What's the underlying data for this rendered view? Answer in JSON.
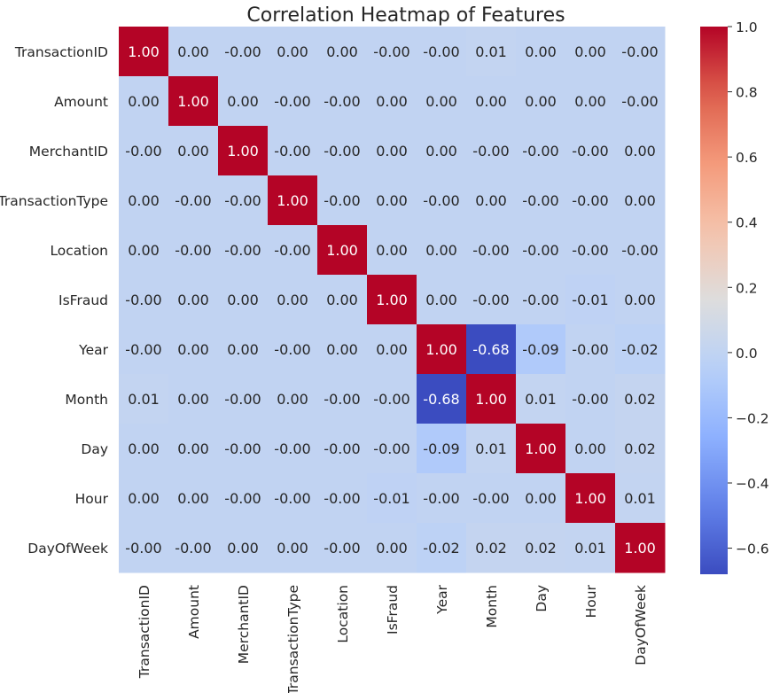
{
  "chart_data": {
    "type": "heatmap",
    "title": "Correlation Heatmap of Features",
    "xlabel": "",
    "ylabel": "",
    "labels": [
      "TransactionID",
      "Amount",
      "MerchantID",
      "TransactionType",
      "Location",
      "IsFraud",
      "Year",
      "Month",
      "Day",
      "Hour",
      "DayOfWeek"
    ],
    "matrix": [
      [
        1.0,
        0.0,
        -0.0,
        0.0,
        0.0,
        -0.0,
        -0.0,
        0.01,
        0.0,
        0.0,
        -0.0
      ],
      [
        0.0,
        1.0,
        0.0,
        -0.0,
        -0.0,
        0.0,
        0.0,
        0.0,
        0.0,
        0.0,
        -0.0
      ],
      [
        -0.0,
        0.0,
        1.0,
        -0.0,
        -0.0,
        0.0,
        0.0,
        -0.0,
        -0.0,
        -0.0,
        0.0
      ],
      [
        0.0,
        -0.0,
        -0.0,
        1.0,
        -0.0,
        0.0,
        -0.0,
        0.0,
        -0.0,
        -0.0,
        0.0
      ],
      [
        0.0,
        -0.0,
        -0.0,
        -0.0,
        1.0,
        0.0,
        0.0,
        -0.0,
        -0.0,
        -0.0,
        -0.0
      ],
      [
        -0.0,
        0.0,
        0.0,
        0.0,
        0.0,
        1.0,
        0.0,
        -0.0,
        -0.0,
        -0.01,
        0.0
      ],
      [
        -0.0,
        0.0,
        0.0,
        -0.0,
        0.0,
        0.0,
        1.0,
        -0.68,
        -0.09,
        -0.0,
        -0.02
      ],
      [
        0.01,
        0.0,
        -0.0,
        0.0,
        -0.0,
        -0.0,
        -0.68,
        1.0,
        0.01,
        -0.0,
        0.02
      ],
      [
        0.0,
        0.0,
        -0.0,
        -0.0,
        -0.0,
        -0.0,
        -0.09,
        0.01,
        1.0,
        0.0,
        0.02
      ],
      [
        0.0,
        0.0,
        -0.0,
        -0.0,
        -0.0,
        -0.01,
        -0.0,
        -0.0,
        0.0,
        1.0,
        0.01
      ],
      [
        -0.0,
        -0.0,
        0.0,
        0.0,
        -0.0,
        0.0,
        -0.02,
        0.02,
        0.02,
        0.01,
        1.0
      ]
    ],
    "display": [
      [
        "1.00",
        "0.00",
        "-0.00",
        "0.00",
        "0.00",
        "-0.00",
        "-0.00",
        "0.01",
        "0.00",
        "0.00",
        "-0.00"
      ],
      [
        "0.00",
        "1.00",
        "0.00",
        "-0.00",
        "-0.00",
        "0.00",
        "0.00",
        "0.00",
        "0.00",
        "0.00",
        "-0.00"
      ],
      [
        "-0.00",
        "0.00",
        "1.00",
        "-0.00",
        "-0.00",
        "0.00",
        "0.00",
        "-0.00",
        "-0.00",
        "-0.00",
        "0.00"
      ],
      [
        "0.00",
        "-0.00",
        "-0.00",
        "1.00",
        "-0.00",
        "0.00",
        "-0.00",
        "0.00",
        "-0.00",
        "-0.00",
        "0.00"
      ],
      [
        "0.00",
        "-0.00",
        "-0.00",
        "-0.00",
        "1.00",
        "0.00",
        "0.00",
        "-0.00",
        "-0.00",
        "-0.00",
        "-0.00"
      ],
      [
        "-0.00",
        "0.00",
        "0.00",
        "0.00",
        "0.00",
        "1.00",
        "0.00",
        "-0.00",
        "-0.00",
        "-0.01",
        "0.00"
      ],
      [
        "-0.00",
        "0.00",
        "0.00",
        "-0.00",
        "0.00",
        "0.00",
        "1.00",
        "-0.68",
        "-0.09",
        "-0.00",
        "-0.02"
      ],
      [
        "0.01",
        "0.00",
        "-0.00",
        "0.00",
        "-0.00",
        "-0.00",
        "-0.68",
        "1.00",
        "0.01",
        "-0.00",
        "0.02"
      ],
      [
        "0.00",
        "0.00",
        "-0.00",
        "-0.00",
        "-0.00",
        "-0.00",
        "-0.09",
        "0.01",
        "1.00",
        "0.00",
        "0.02"
      ],
      [
        "0.00",
        "0.00",
        "-0.00",
        "-0.00",
        "-0.00",
        "-0.01",
        "-0.00",
        "-0.00",
        "0.00",
        "1.00",
        "0.01"
      ],
      [
        "-0.00",
        "-0.00",
        "0.00",
        "0.00",
        "-0.00",
        "0.00",
        "-0.02",
        "0.02",
        "0.02",
        "0.01",
        "1.00"
      ]
    ],
    "colormap": "coolwarm",
    "vmin": -0.68,
    "vmax": 1.0,
    "colorbar": {
      "ticks": [
        1.0,
        0.8,
        0.6,
        0.4,
        0.2,
        0.0,
        -0.2,
        -0.4,
        -0.6
      ],
      "tick_labels": [
        "1.0",
        "0.8",
        "0.6",
        "0.4",
        "0.2",
        "0.0",
        "−0.2",
        "−0.4",
        "−0.6"
      ],
      "placement": "right"
    },
    "grid": false
  }
}
